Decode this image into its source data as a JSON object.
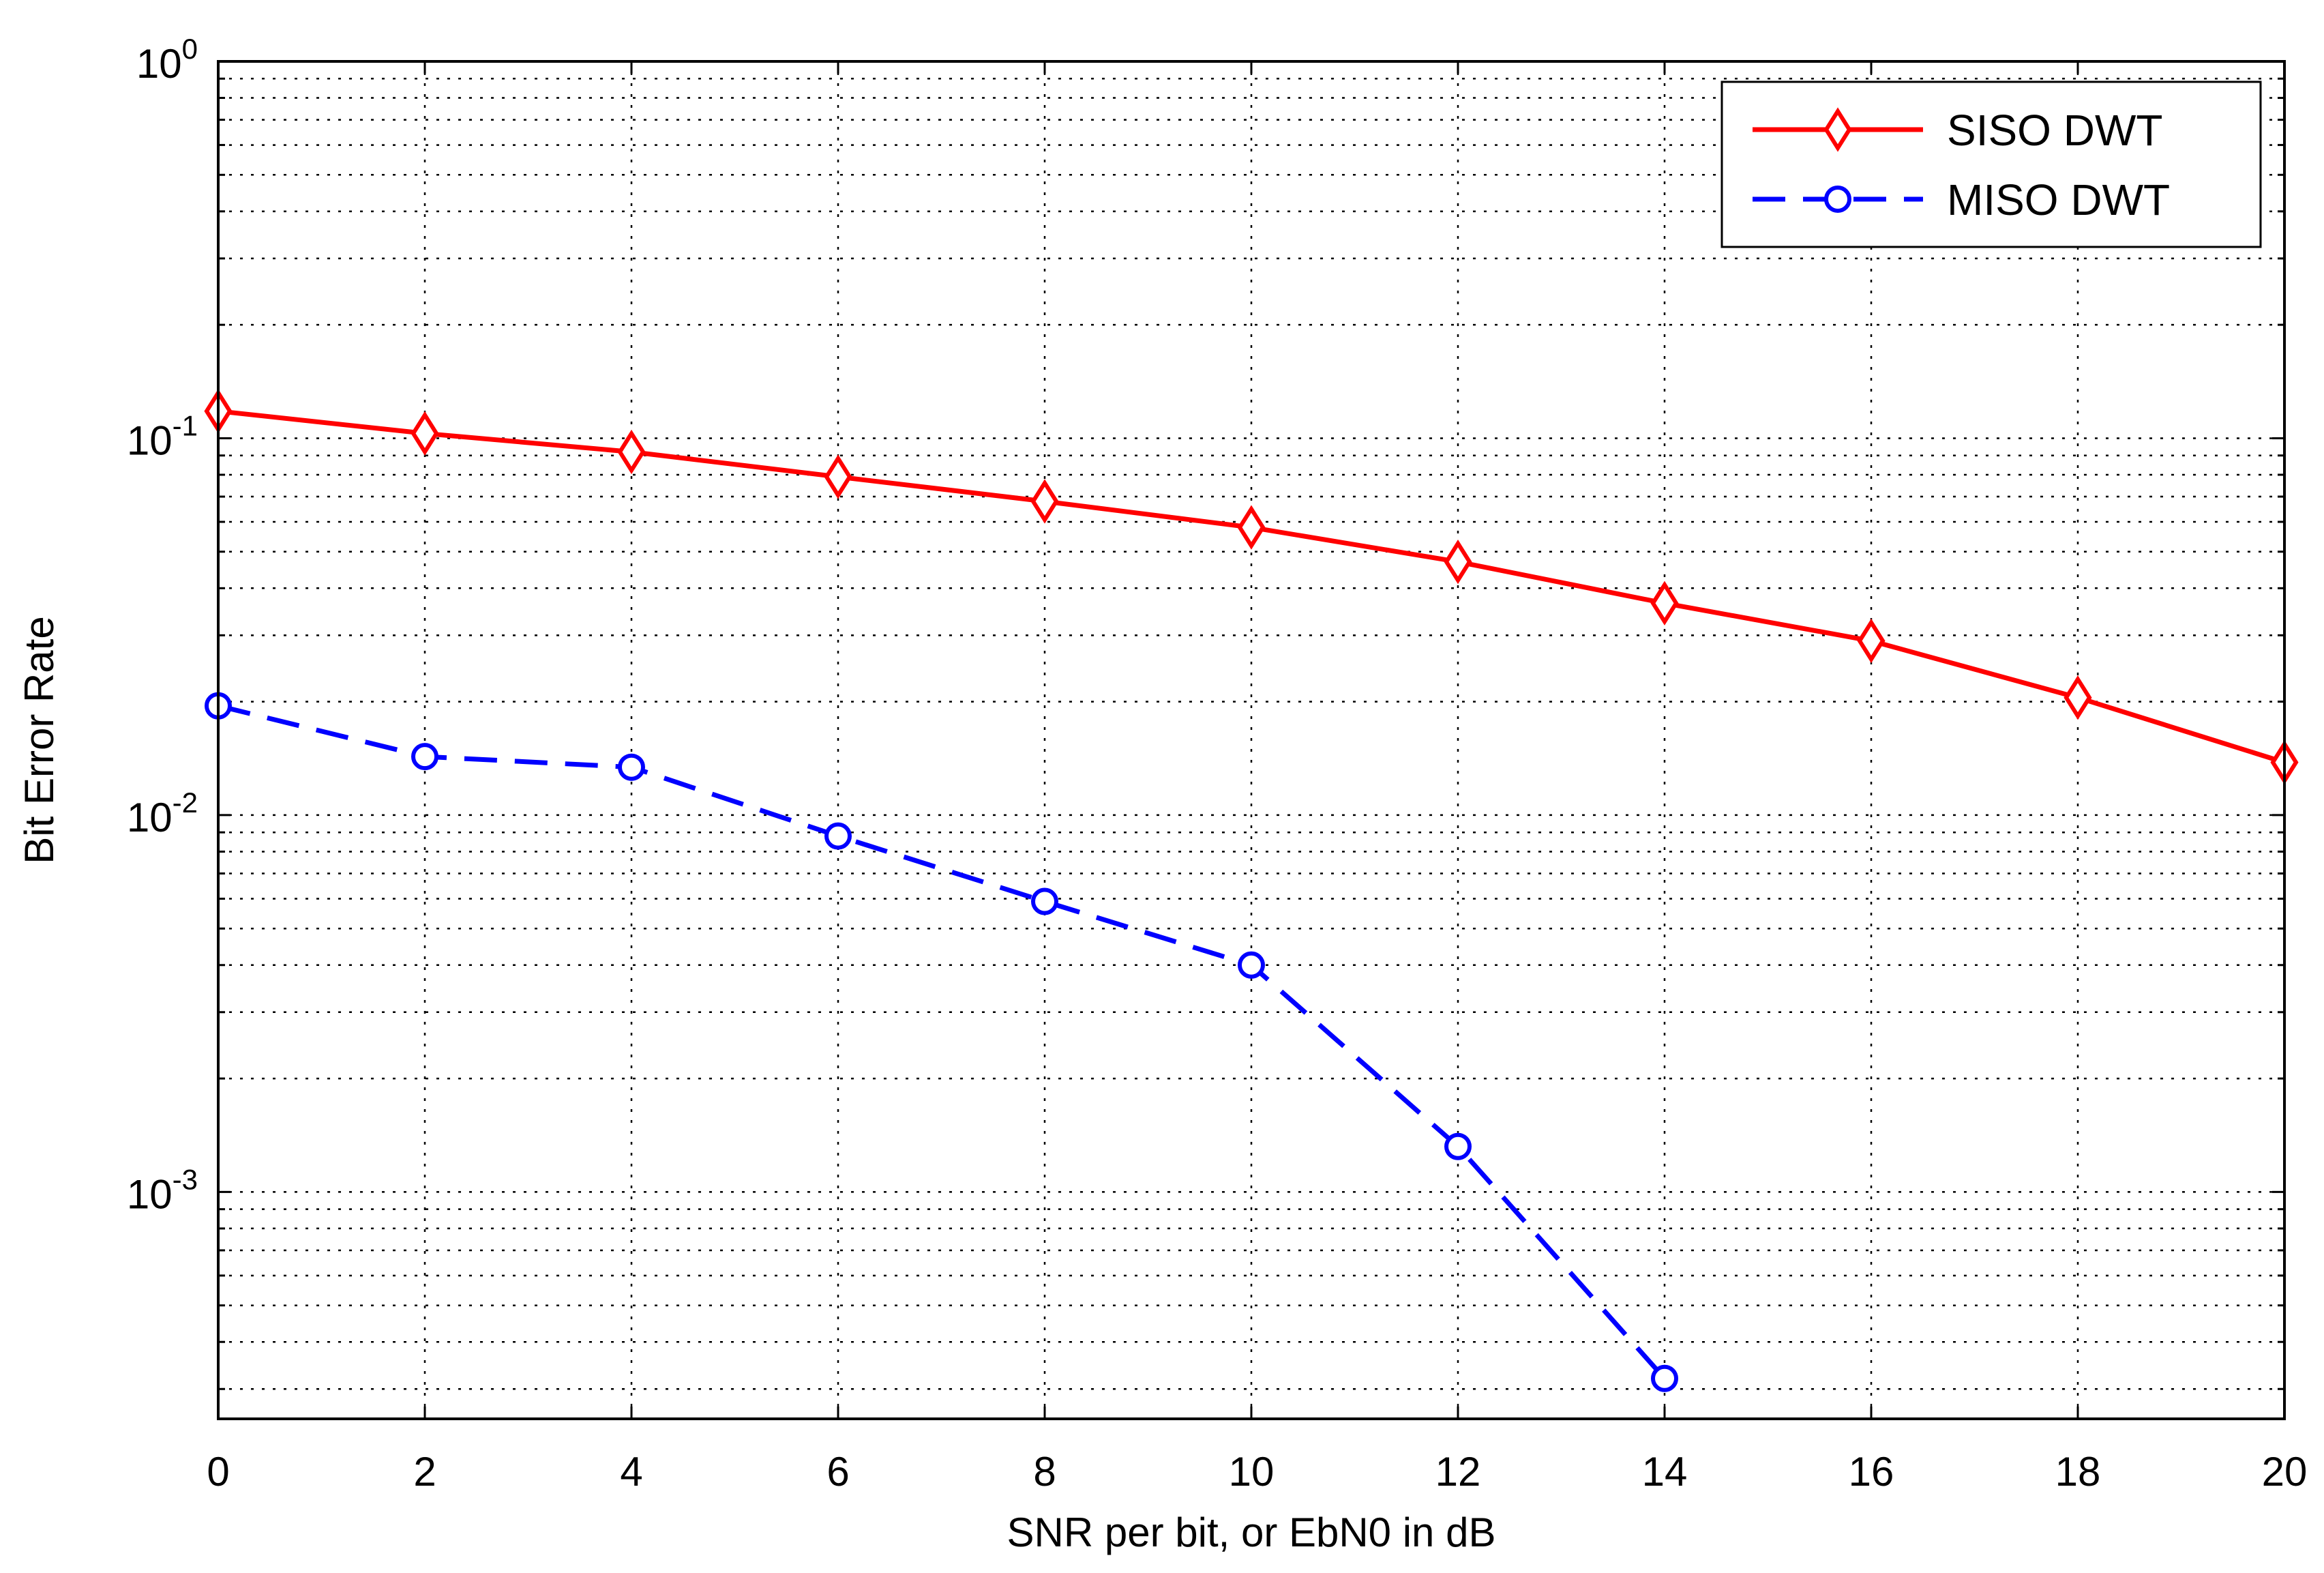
{
  "chart_data": {
    "type": "line",
    "title": "",
    "xlabel": "SNR per bit, or EbN0 in dB",
    "ylabel": "Bit Error Rate",
    "xlim": [
      0,
      20
    ],
    "ylim": [
      0.00025,
      1
    ],
    "yscale": "log",
    "grid": true,
    "legend_location": "top-right",
    "x_ticks": [
      0,
      2,
      4,
      6,
      8,
      10,
      12,
      14,
      16,
      18,
      20
    ],
    "x_tick_labels": [
      "0",
      "2",
      "4",
      "6",
      "8",
      "10",
      "12",
      "14",
      "16",
      "18",
      "20"
    ],
    "y_ticks": [
      {
        "value": 1,
        "base": "10",
        "exponent": "0"
      },
      {
        "value": 0.1,
        "base": "10",
        "exponent": "-1"
      },
      {
        "value": 0.01,
        "base": "10",
        "exponent": "-2"
      },
      {
        "value": 0.001,
        "base": "10",
        "exponent": "-3"
      }
    ],
    "series": [
      {
        "name": "SISO DWT",
        "color": "#ff0000",
        "line_style": "solid",
        "marker": "diamond",
        "x": [
          0,
          2,
          4,
          6,
          8,
          10,
          12,
          14,
          16,
          18,
          20
        ],
        "values": [
          0.118,
          0.103,
          0.092,
          0.079,
          0.068,
          0.058,
          0.047,
          0.0365,
          0.029,
          0.0205,
          0.0138
        ]
      },
      {
        "name": "MISO DWT",
        "color": "#0000ff",
        "line_style": "dashed",
        "marker": "circle",
        "x": [
          0,
          2,
          4,
          6,
          8,
          10,
          12,
          14
        ],
        "values": [
          0.0195,
          0.0143,
          0.0134,
          0.0088,
          0.0059,
          0.004,
          0.00132,
          0.00032
        ]
      }
    ]
  }
}
